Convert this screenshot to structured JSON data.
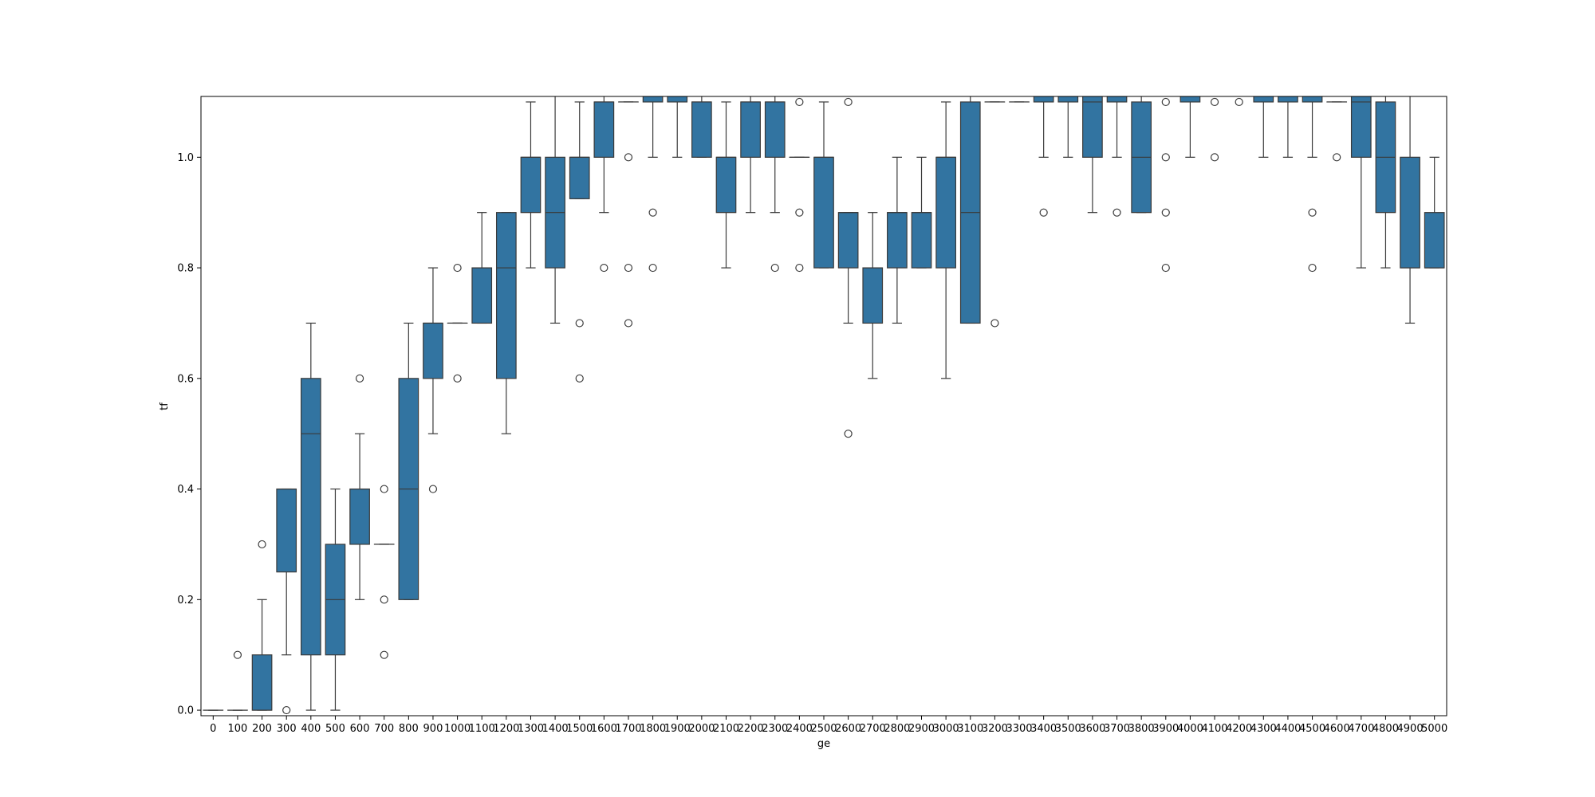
{
  "chart_data": {
    "type": "box",
    "xlabel": "ge",
    "ylabel": "tf",
    "ylim": [
      -0.01,
      1.11
    ],
    "yticks": [
      "0.0",
      "0.2",
      "0.4",
      "0.6",
      "0.8",
      "1.0"
    ],
    "grid": false,
    "box_color": "#3274a1",
    "categories": [
      "0",
      "100",
      "200",
      "300",
      "400",
      "500",
      "600",
      "700",
      "800",
      "900",
      "1000",
      "1100",
      "1200",
      "1300",
      "1400",
      "1500",
      "1600",
      "1700",
      "1800",
      "1900",
      "2000",
      "2100",
      "2200",
      "2300",
      "2400",
      "2500",
      "2600",
      "2700",
      "2800",
      "2900",
      "3000",
      "3100",
      "3200",
      "3300",
      "3400",
      "3500",
      "3600",
      "3700",
      "3800",
      "3900",
      "4000",
      "4100",
      "4200",
      "4300",
      "4400",
      "4500",
      "4600",
      "4700",
      "4800",
      "4900",
      "5000"
    ],
    "boxes": [
      {
        "whislo": 0.0,
        "q1": 0.0,
        "med": 0.0,
        "q3": 0.0,
        "whishi": 0.0,
        "fliers": []
      },
      {
        "whislo": 0.0,
        "q1": 0.0,
        "med": 0.0,
        "q3": 0.0,
        "whishi": 0.0,
        "fliers": [
          0.1
        ]
      },
      {
        "whislo": 0.0,
        "q1": 0.0,
        "med": 0.0,
        "q3": 0.1,
        "whishi": 0.2,
        "fliers": [
          0.3
        ]
      },
      {
        "whislo": 0.1,
        "q1": 0.25,
        "med": 0.4,
        "q3": 0.4,
        "whishi": 0.4,
        "fliers": [
          0.0
        ]
      },
      {
        "whislo": 0.0,
        "q1": 0.1,
        "med": 0.5,
        "q3": 0.6,
        "whishi": 0.7,
        "fliers": []
      },
      {
        "whislo": 0.0,
        "q1": 0.1,
        "med": 0.2,
        "q3": 0.3,
        "whishi": 0.4,
        "fliers": []
      },
      {
        "whislo": 0.2,
        "q1": 0.3,
        "med": 0.4,
        "q3": 0.4,
        "whishi": 0.5,
        "fliers": [
          0.6
        ]
      },
      {
        "whislo": 0.3,
        "q1": 0.3,
        "med": 0.3,
        "q3": 0.3,
        "whishi": 0.3,
        "fliers": [
          0.4,
          0.2,
          0.1
        ]
      },
      {
        "whislo": 0.2,
        "q1": 0.2,
        "med": 0.4,
        "q3": 0.6,
        "whishi": 0.7,
        "fliers": []
      },
      {
        "whislo": 0.5,
        "q1": 0.6,
        "med": 0.7,
        "q3": 0.7,
        "whishi": 0.8,
        "fliers": [
          0.4
        ]
      },
      {
        "whislo": 0.7,
        "q1": 0.7,
        "med": 0.7,
        "q3": 0.7,
        "whishi": 0.7,
        "fliers": [
          0.8,
          0.6
        ]
      },
      {
        "whislo": 0.7,
        "q1": 0.7,
        "med": 0.8,
        "q3": 0.8,
        "whishi": 0.9,
        "fliers": []
      },
      {
        "whislo": 0.5,
        "q1": 0.6,
        "med": 0.8,
        "q3": 0.9,
        "whishi": 0.9,
        "fliers": []
      },
      {
        "whislo": 0.8,
        "q1": 0.9,
        "med": 1.0,
        "q3": 1.0,
        "whishi": 1.1,
        "fliers": []
      },
      {
        "whislo": 0.7,
        "q1": 0.8,
        "med": 0.9,
        "q3": 1.0,
        "whishi": 1.2,
        "fliers": []
      },
      {
        "whislo": 0.925,
        "q1": 0.925,
        "med": 1.0,
        "q3": 1.0,
        "whishi": 1.1,
        "fliers": [
          0.7,
          0.6
        ]
      },
      {
        "whislo": 0.9,
        "q1": 1.0,
        "med": 1.1,
        "q3": 1.1,
        "whishi": 1.2,
        "fliers": [
          0.8
        ]
      },
      {
        "whislo": 1.1,
        "q1": 1.1,
        "med": 1.1,
        "q3": 1.1,
        "whishi": 1.1,
        "fliers": [
          1.0,
          0.8,
          0.7
        ]
      },
      {
        "whislo": 1.0,
        "q1": 1.1,
        "med": 1.2,
        "q3": 1.2,
        "whishi": 1.2,
        "fliers": [
          0.9,
          0.8
        ]
      },
      {
        "whislo": 1.0,
        "q1": 1.1,
        "med": 1.2,
        "q3": 1.2,
        "whishi": 1.2,
        "fliers": []
      },
      {
        "whislo": 1.0,
        "q1": 1.0,
        "med": 1.1,
        "q3": 1.1,
        "whishi": 1.2,
        "fliers": []
      },
      {
        "whislo": 0.8,
        "q1": 0.9,
        "med": 1.0,
        "q3": 1.0,
        "whishi": 1.1,
        "fliers": []
      },
      {
        "whislo": 0.9,
        "q1": 1.0,
        "med": 1.1,
        "q3": 1.1,
        "whishi": 1.2,
        "fliers": []
      },
      {
        "whislo": 0.9,
        "q1": 1.0,
        "med": 1.1,
        "q3": 1.1,
        "whishi": 1.2,
        "fliers": [
          0.8
        ]
      },
      {
        "whislo": 1.0,
        "q1": 1.0,
        "med": 1.0,
        "q3": 1.0,
        "whishi": 1.0,
        "fliers": [
          1.1,
          0.9,
          0.8
        ]
      },
      {
        "whislo": 0.8,
        "q1": 0.8,
        "med": 1.0,
        "q3": 1.0,
        "whishi": 1.1,
        "fliers": []
      },
      {
        "whislo": 0.7,
        "q1": 0.8,
        "med": 0.9,
        "q3": 0.9,
        "whishi": 0.9,
        "fliers": [
          1.1,
          0.5
        ]
      },
      {
        "whislo": 0.6,
        "q1": 0.7,
        "med": 0.8,
        "q3": 0.8,
        "whishi": 0.9,
        "fliers": []
      },
      {
        "whislo": 0.7,
        "q1": 0.8,
        "med": 0.9,
        "q3": 0.9,
        "whishi": 1.0,
        "fliers": []
      },
      {
        "whislo": 0.8,
        "q1": 0.8,
        "med": 0.9,
        "q3": 0.9,
        "whishi": 1.0,
        "fliers": []
      },
      {
        "whislo": 0.6,
        "q1": 0.8,
        "med": 1.0,
        "q3": 1.0,
        "whishi": 1.1,
        "fliers": []
      },
      {
        "whislo": 0.7,
        "q1": 0.7,
        "med": 0.9,
        "q3": 1.1,
        "whishi": 1.2,
        "fliers": []
      },
      {
        "whislo": 1.1,
        "q1": 1.1,
        "med": 1.1,
        "q3": 1.1,
        "whishi": 1.1,
        "fliers": [
          0.7
        ]
      },
      {
        "whislo": 1.1,
        "q1": 1.1,
        "med": 1.1,
        "q3": 1.1,
        "whishi": 1.1,
        "fliers": []
      },
      {
        "whislo": 1.0,
        "q1": 1.1,
        "med": 1.2,
        "q3": 1.2,
        "whishi": 1.2,
        "fliers": [
          0.9
        ]
      },
      {
        "whislo": 1.0,
        "q1": 1.1,
        "med": 1.2,
        "q3": 1.2,
        "whishi": 1.2,
        "fliers": []
      },
      {
        "whislo": 0.9,
        "q1": 1.0,
        "med": 1.1,
        "q3": 1.2,
        "whishi": 1.2,
        "fliers": []
      },
      {
        "whislo": 1.0,
        "q1": 1.1,
        "med": 1.2,
        "q3": 1.2,
        "whishi": 1.2,
        "fliers": [
          0.9
        ]
      },
      {
        "whislo": 0.9,
        "q1": 0.9,
        "med": 1.0,
        "q3": 1.1,
        "whishi": 1.2,
        "fliers": []
      },
      {
        "whislo": 1.2,
        "q1": 1.2,
        "med": 1.2,
        "q3": 1.2,
        "whishi": 1.2,
        "fliers": [
          1.1,
          1.0,
          0.9,
          0.8
        ]
      },
      {
        "whislo": 1.0,
        "q1": 1.1,
        "med": 1.2,
        "q3": 1.2,
        "whishi": 1.2,
        "fliers": []
      },
      {
        "whislo": 1.2,
        "q1": 1.2,
        "med": 1.2,
        "q3": 1.2,
        "whishi": 1.2,
        "fliers": [
          1.1,
          1.0
        ]
      },
      {
        "whislo": 1.2,
        "q1": 1.2,
        "med": 1.2,
        "q3": 1.2,
        "whishi": 1.2,
        "fliers": [
          1.1
        ]
      },
      {
        "whislo": 1.0,
        "q1": 1.1,
        "med": 1.2,
        "q3": 1.2,
        "whishi": 1.2,
        "fliers": []
      },
      {
        "whislo": 1.0,
        "q1": 1.1,
        "med": 1.2,
        "q3": 1.2,
        "whishi": 1.2,
        "fliers": []
      },
      {
        "whislo": 1.0,
        "q1": 1.1,
        "med": 1.2,
        "q3": 1.2,
        "whishi": 1.2,
        "fliers": [
          0.9,
          0.8
        ]
      },
      {
        "whislo": 1.1,
        "q1": 1.1,
        "med": 1.1,
        "q3": 1.1,
        "whishi": 1.1,
        "fliers": [
          1.0
        ]
      },
      {
        "whislo": 0.8,
        "q1": 1.0,
        "med": 1.1,
        "q3": 1.2,
        "whishi": 1.2,
        "fliers": []
      },
      {
        "whislo": 0.8,
        "q1": 0.9,
        "med": 1.0,
        "q3": 1.1,
        "whishi": 1.2,
        "fliers": []
      },
      {
        "whislo": 0.7,
        "q1": 0.8,
        "med": 0.8,
        "q3": 1.0,
        "whishi": 1.2,
        "fliers": []
      },
      {
        "whislo": 0.8,
        "q1": 0.8,
        "med": 0.8,
        "q3": 0.9,
        "whishi": 1.0,
        "fliers": []
      }
    ]
  }
}
